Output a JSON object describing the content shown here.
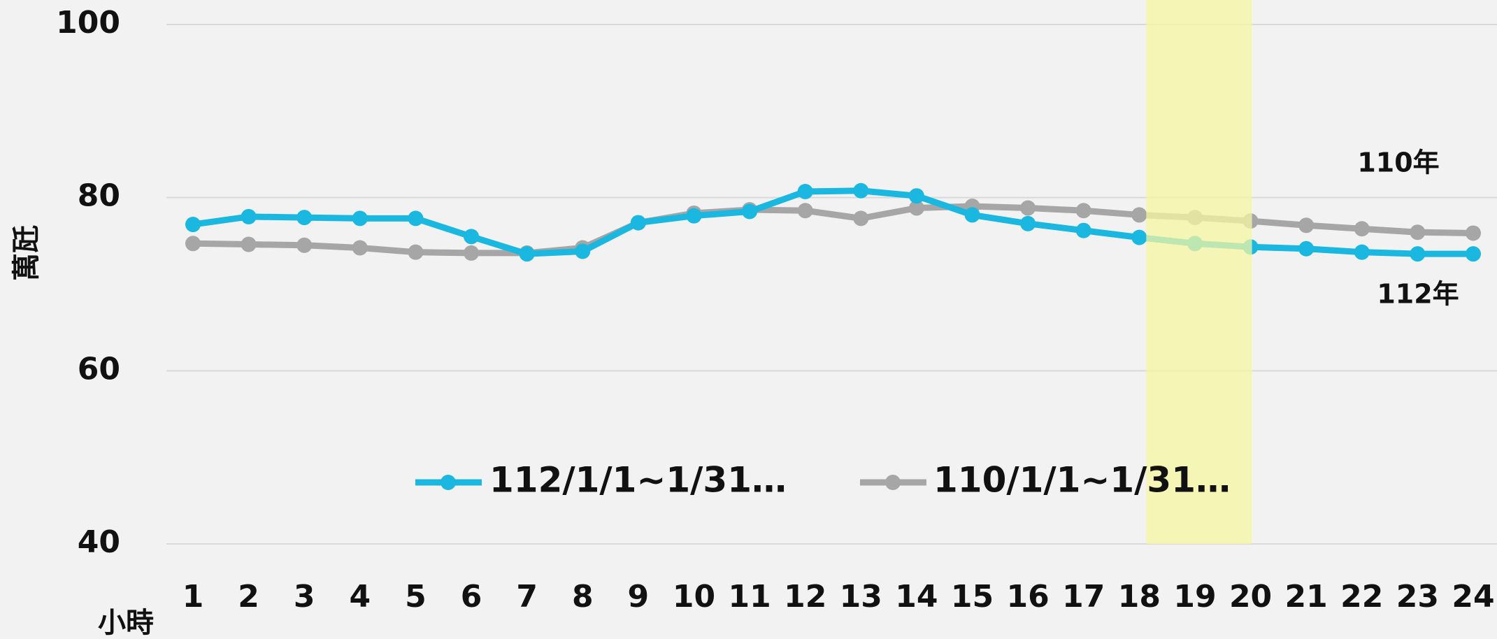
{
  "chart_data": {
    "type": "line",
    "categories": [
      "1",
      "2",
      "3",
      "4",
      "5",
      "6",
      "7",
      "8",
      "9",
      "10",
      "11",
      "12",
      "13",
      "14",
      "15",
      "16",
      "17",
      "18",
      "19",
      "20",
      "21",
      "22",
      "23",
      "24"
    ],
    "series": [
      {
        "name": "112/1/1~1/31…",
        "color": "#1ab7e0",
        "values": [
          76.9,
          77.8,
          77.7,
          77.6,
          77.6,
          75.5,
          73.5,
          73.8,
          77.1,
          77.9,
          78.4,
          80.7,
          80.8,
          80.2,
          78.0,
          77.0,
          76.2,
          75.4,
          74.7,
          74.3,
          74.1,
          73.7,
          73.5,
          73.5
        ]
      },
      {
        "name": "110/1/1~1/31…",
        "color": "#a6a6a6",
        "values": [
          74.7,
          74.6,
          74.5,
          74.2,
          73.7,
          73.6,
          73.6,
          74.2,
          77.1,
          78.2,
          78.6,
          78.5,
          77.6,
          78.8,
          79.0,
          78.8,
          78.5,
          78.0,
          77.7,
          77.3,
          76.8,
          76.4,
          76.0,
          75.9
        ]
      }
    ],
    "ylabel": "萬瓩",
    "xlabel": "小時",
    "annotations": [
      "110年",
      "112年"
    ],
    "highlight_color": "#f5f5a0",
    "ylim": [
      40,
      100
    ],
    "yticks": [
      40,
      60,
      80,
      100
    ],
    "grid": true
  }
}
